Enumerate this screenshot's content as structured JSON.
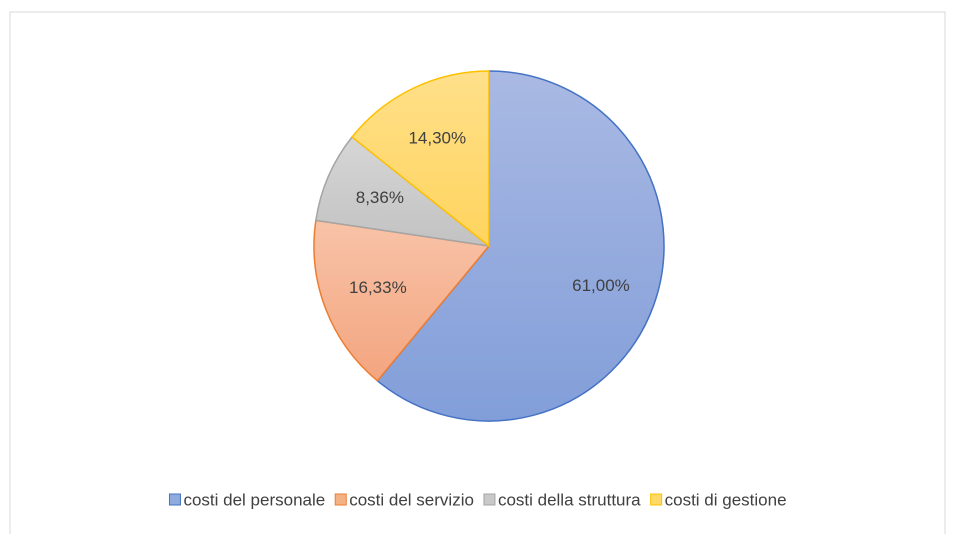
{
  "chart_data": {
    "type": "pie",
    "categories": [
      "costi del personale",
      "costi del servizio",
      "costi della struttura",
      "costi di gestione"
    ],
    "values": [
      61.0,
      16.33,
      8.36,
      14.3
    ],
    "value_labels": [
      "61,00%",
      "16,33%",
      "8,36%",
      "14,30%"
    ],
    "colors": [
      "#8faadc",
      "#f4b183",
      "#c9c9c9",
      "#ffd966"
    ],
    "legend": "bottom"
  }
}
